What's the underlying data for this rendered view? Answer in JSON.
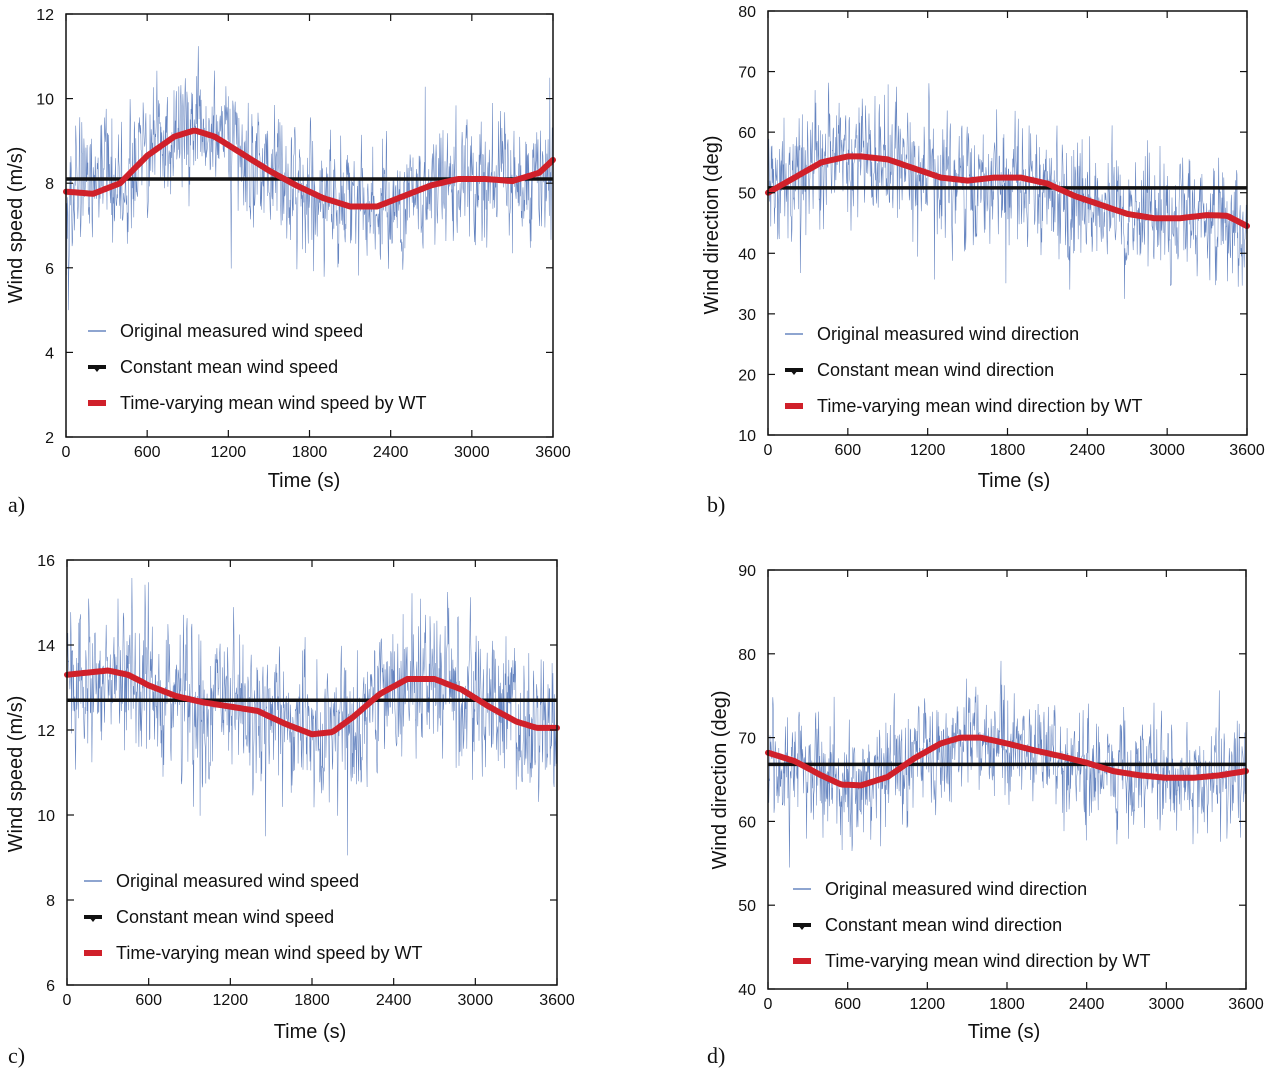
{
  "colors": {
    "measured": "#4a6fb5",
    "constant": "#111111",
    "wt": "#d0202a"
  },
  "chart_data": [
    {
      "type": "line",
      "panel_label": "a)",
      "xlabel": "Time (s)",
      "ylabel": "Wind speed (m/s)",
      "xlim": [
        0,
        3600
      ],
      "ylim": [
        2,
        12
      ],
      "xticks": [
        0,
        600,
        1200,
        1800,
        2400,
        3000,
        3600
      ],
      "yticks": [
        2,
        4,
        6,
        8,
        10,
        12
      ],
      "legend_placement": "bottom-left",
      "series": [
        {
          "name": "Original measured wind speed",
          "kind": "measured",
          "band": [
            5.0,
            11.4
          ]
        },
        {
          "name": "Constant mean wind speed",
          "kind": "constant",
          "x": [
            0,
            3600
          ],
          "y": [
            8.1,
            8.1
          ]
        },
        {
          "name": "Time-varying mean wind speed by WT",
          "kind": "wt",
          "x": [
            0,
            200,
            400,
            600,
            800,
            950,
            1100,
            1300,
            1500,
            1700,
            1900,
            2100,
            2300,
            2500,
            2700,
            2900,
            3100,
            3300,
            3500,
            3600
          ],
          "y": [
            7.8,
            7.75,
            8.0,
            8.65,
            9.1,
            9.25,
            9.1,
            8.7,
            8.3,
            7.95,
            7.65,
            7.45,
            7.45,
            7.7,
            7.95,
            8.1,
            8.1,
            8.05,
            8.25,
            8.55
          ]
        }
      ]
    },
    {
      "type": "line",
      "panel_label": "b)",
      "xlabel": "Time (s)",
      "ylabel": "Wind direction (deg)",
      "xlim": [
        0,
        3600
      ],
      "ylim": [
        10,
        80
      ],
      "xticks": [
        0,
        600,
        1200,
        1800,
        2400,
        3000,
        3600
      ],
      "yticks": [
        10,
        20,
        30,
        40,
        50,
        60,
        70,
        80
      ],
      "legend_placement": "bottom-left",
      "series": [
        {
          "name": "Original measured wind direction",
          "kind": "measured",
          "band": [
            26,
            70
          ]
        },
        {
          "name": "Constant mean wind direction",
          "kind": "constant",
          "x": [
            0,
            3600
          ],
          "y": [
            50.8,
            50.8
          ]
        },
        {
          "name": "Time-varying mean wind direction by WT",
          "kind": "wt",
          "x": [
            0,
            200,
            400,
            600,
            700,
            900,
            1100,
            1300,
            1500,
            1700,
            1900,
            2100,
            2300,
            2500,
            2700,
            2900,
            3100,
            3300,
            3450,
            3600
          ],
          "y": [
            50,
            52.5,
            55,
            56,
            56,
            55.5,
            54,
            52.5,
            52,
            52.5,
            52.5,
            51.5,
            49.5,
            48,
            46.5,
            45.8,
            45.8,
            46.3,
            46.2,
            44.5
          ]
        }
      ]
    },
    {
      "type": "line",
      "panel_label": "c)",
      "xlabel": "Time (s)",
      "ylabel": "Wind speed (m/s)",
      "xlim": [
        0,
        3600
      ],
      "ylim": [
        6,
        16
      ],
      "xticks": [
        0,
        600,
        1200,
        1800,
        2400,
        3000,
        3600
      ],
      "yticks": [
        6,
        8,
        10,
        12,
        14,
        16
      ],
      "legend_placement": "bottom-left",
      "series": [
        {
          "name": "Original measured wind speed",
          "kind": "measured",
          "band": [
            8.8,
            16.0
          ]
        },
        {
          "name": "Constant mean wind speed",
          "kind": "constant",
          "x": [
            0,
            3600
          ],
          "y": [
            12.7,
            12.7
          ]
        },
        {
          "name": "Time-varying mean wind speed by WT",
          "kind": "wt",
          "x": [
            0,
            150,
            300,
            450,
            600,
            800,
            1000,
            1200,
            1400,
            1600,
            1800,
            1950,
            2100,
            2300,
            2500,
            2700,
            2900,
            3100,
            3300,
            3450,
            3600
          ],
          "y": [
            13.3,
            13.35,
            13.4,
            13.3,
            13.05,
            12.8,
            12.65,
            12.55,
            12.45,
            12.15,
            11.9,
            11.95,
            12.3,
            12.85,
            13.2,
            13.2,
            12.95,
            12.55,
            12.2,
            12.05,
            12.05
          ]
        }
      ]
    },
    {
      "type": "line",
      "panel_label": "d)",
      "xlabel": "Time (s)",
      "ylabel": "Wind direction (deg)",
      "xlim": [
        0,
        3600
      ],
      "ylim": [
        40,
        90
      ],
      "xticks": [
        0,
        600,
        1200,
        1800,
        2400,
        3000,
        3600
      ],
      "yticks": [
        40,
        50,
        60,
        70,
        80,
        90
      ],
      "legend_placement": "bottom-left",
      "series": [
        {
          "name": "Original measured wind direction",
          "kind": "measured",
          "band": [
            53.5,
            82
          ]
        },
        {
          "name": "Constant mean wind direction",
          "kind": "constant",
          "x": [
            0,
            3600
          ],
          "y": [
            66.8,
            66.8
          ]
        },
        {
          "name": "Time-varying mean wind direction by WT",
          "kind": "wt",
          "x": [
            0,
            200,
            400,
            550,
            700,
            900,
            1100,
            1300,
            1450,
            1600,
            1800,
            2000,
            2200,
            2400,
            2600,
            2800,
            3000,
            3200,
            3400,
            3600
          ],
          "y": [
            68.2,
            67.2,
            65.5,
            64.4,
            64.3,
            65.3,
            67.5,
            69.3,
            70,
            70,
            69.3,
            68.5,
            67.8,
            67,
            66,
            65.5,
            65.2,
            65.2,
            65.5,
            66
          ]
        }
      ]
    }
  ]
}
